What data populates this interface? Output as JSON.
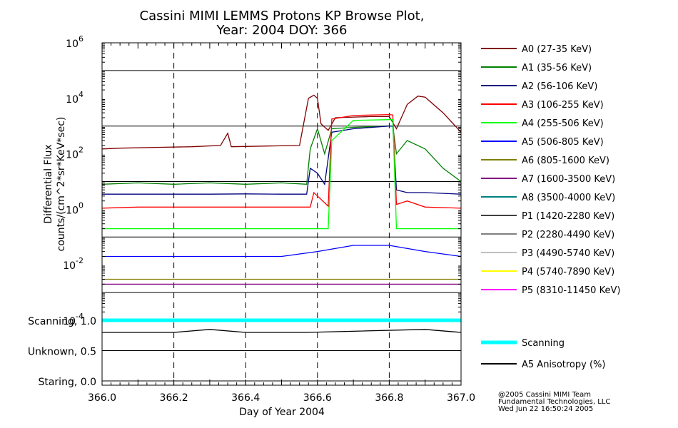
{
  "chart_data": {
    "type": "line",
    "title_line1": "Cassini MIMI LEMMS Protons KP Browse Plot,",
    "title_line2": "Year: 2004 DOY: 366",
    "xlabel": "Day of Year 2004",
    "ylabel_line1": "Differential Flux",
    "ylabel_line2": "counts/(cm^2*sr*KeV*sec)",
    "xlim": [
      366.0,
      367.0
    ],
    "x_ticks": [
      "366.0",
      "366.2",
      "366.4",
      "366.6",
      "366.8",
      "367.0"
    ],
    "y_scale": "log",
    "ylim": [
      0.0001,
      1000000
    ],
    "y_tick_base": "10",
    "y_tick_exponents": [
      "6",
      "4",
      "2",
      "0",
      "-2",
      "-4"
    ],
    "lower_panel_labels": [
      "Scanning, 1.0",
      "Unknown, 0.5",
      "Staring, 0.0"
    ],
    "series": [
      {
        "name": "A0 (27-35 KeV)",
        "color": "#800000",
        "points": [
          [
            366.0,
            150
          ],
          [
            366.05,
            160
          ],
          [
            366.15,
            170
          ],
          [
            366.25,
            180
          ],
          [
            366.33,
            200
          ],
          [
            366.35,
            550
          ],
          [
            366.36,
            180
          ],
          [
            366.45,
            190
          ],
          [
            366.55,
            200
          ],
          [
            366.575,
            10000
          ],
          [
            366.59,
            13000
          ],
          [
            366.6,
            10000
          ],
          [
            366.61,
            1200
          ],
          [
            366.63,
            700
          ],
          [
            366.65,
            2000
          ],
          [
            366.75,
            2200
          ],
          [
            366.8,
            2200
          ],
          [
            366.82,
            800
          ],
          [
            366.85,
            6000
          ],
          [
            366.88,
            12000
          ],
          [
            366.9,
            11000
          ],
          [
            366.95,
            3000
          ],
          [
            367.0,
            600
          ]
        ]
      },
      {
        "name": "A1 (35-56 KeV)",
        "color": "#008000",
        "points": [
          [
            366.0,
            8
          ],
          [
            366.1,
            9
          ],
          [
            366.2,
            8
          ],
          [
            366.3,
            9
          ],
          [
            366.4,
            8
          ],
          [
            366.5,
            9
          ],
          [
            366.57,
            8
          ],
          [
            366.58,
            150
          ],
          [
            366.6,
            800
          ],
          [
            366.62,
            100
          ],
          [
            366.64,
            800
          ],
          [
            366.7,
            900
          ],
          [
            366.8,
            1000
          ],
          [
            366.81,
            1000
          ],
          [
            366.82,
            100
          ],
          [
            366.85,
            300
          ],
          [
            366.9,
            150
          ],
          [
            366.95,
            30
          ],
          [
            367.0,
            10
          ]
        ]
      },
      {
        "name": "A2 (56-106 KeV)",
        "color": "#000080",
        "points": [
          [
            366.0,
            3.5
          ],
          [
            366.1,
            3.5
          ],
          [
            366.2,
            3.5
          ],
          [
            366.3,
            3.5
          ],
          [
            366.4,
            3.6
          ],
          [
            366.5,
            3.5
          ],
          [
            366.57,
            3.5
          ],
          [
            366.58,
            30
          ],
          [
            366.6,
            20
          ],
          [
            366.62,
            8
          ],
          [
            366.64,
            600
          ],
          [
            366.7,
            800
          ],
          [
            366.8,
            1000
          ],
          [
            366.81,
            1000
          ],
          [
            366.82,
            5
          ],
          [
            366.85,
            4
          ],
          [
            366.9,
            4
          ],
          [
            367.0,
            3.5
          ]
        ]
      },
      {
        "name": "A3 (106-255 KeV)",
        "color": "#ff0000",
        "points": [
          [
            366.0,
            1.1
          ],
          [
            366.1,
            1.2
          ],
          [
            366.2,
            1.2
          ],
          [
            366.3,
            1.2
          ],
          [
            366.4,
            1.2
          ],
          [
            366.5,
            1.2
          ],
          [
            366.58,
            1.2
          ],
          [
            366.59,
            4
          ],
          [
            366.6,
            3
          ],
          [
            366.63,
            1.3
          ],
          [
            366.64,
            1800
          ],
          [
            366.7,
            2400
          ],
          [
            366.8,
            2600
          ],
          [
            366.81,
            2500
          ],
          [
            366.82,
            1.5
          ],
          [
            366.85,
            2
          ],
          [
            366.9,
            1.2
          ],
          [
            367.0,
            1.1
          ]
        ]
      },
      {
        "name": "A4 (255-506 KeV)",
        "color": "#00ff00",
        "points": [
          [
            366.0,
            0.2
          ],
          [
            366.1,
            0.2
          ],
          [
            366.2,
            0.2
          ],
          [
            366.3,
            0.2
          ],
          [
            366.4,
            0.2
          ],
          [
            366.5,
            0.2
          ],
          [
            366.6,
            0.2
          ],
          [
            366.63,
            0.2
          ],
          [
            366.64,
            300
          ],
          [
            366.7,
            1600
          ],
          [
            366.8,
            1700
          ],
          [
            366.81,
            1700
          ],
          [
            366.82,
            0.2
          ],
          [
            366.9,
            0.2
          ],
          [
            367.0,
            0.2
          ]
        ]
      },
      {
        "name": "A5 (506-805 KeV)",
        "color": "#0000ff",
        "points": [
          [
            366.0,
            0.02
          ],
          [
            366.1,
            0.02
          ],
          [
            366.2,
            0.02
          ],
          [
            366.3,
            0.02
          ],
          [
            366.4,
            0.02
          ],
          [
            366.5,
            0.02
          ],
          [
            366.6,
            0.03
          ],
          [
            366.7,
            0.05
          ],
          [
            366.8,
            0.05
          ],
          [
            366.9,
            0.03
          ],
          [
            367.0,
            0.02
          ]
        ]
      },
      {
        "name": "A6 (805-1600 KeV)",
        "color": "#808000",
        "points": [
          [
            366.0,
            0.003
          ],
          [
            366.2,
            0.003
          ],
          [
            366.4,
            0.003
          ],
          [
            366.6,
            0.003
          ],
          [
            366.8,
            0.003
          ],
          [
            367.0,
            0.003
          ]
        ]
      },
      {
        "name": "A7 (1600-3500 KeV)",
        "color": "#800080",
        "points": [
          [
            366.0,
            0.002
          ],
          [
            366.2,
            0.002
          ],
          [
            366.4,
            0.002
          ],
          [
            366.6,
            0.002
          ],
          [
            366.8,
            0.002
          ],
          [
            367.0,
            0.002
          ]
        ]
      },
      {
        "name": "A8 (3500-4000 KeV)",
        "color": "#008080",
        "points": []
      },
      {
        "name": "P1 (1420-2280 KeV)",
        "color": "#404040",
        "points": []
      },
      {
        "name": "P2 (2280-4490 KeV)",
        "color": "#808080",
        "points": [
          [
            366.0,
            0.0001
          ],
          [
            366.5,
            0.0001
          ],
          [
            367.0,
            0.0001
          ]
        ]
      },
      {
        "name": "P3 (4490-5740 KeV)",
        "color": "#c0c0c0",
        "points": []
      },
      {
        "name": "P4 (5740-7890 KeV)",
        "color": "#ffff00",
        "points": [
          [
            366.0,
            0.0001
          ],
          [
            366.5,
            0.0001
          ],
          [
            367.0,
            0.0001
          ]
        ]
      },
      {
        "name": "P5 (8310-11450 KeV)",
        "color": "#ff00ff",
        "points": []
      }
    ],
    "lower_series": [
      {
        "name": "Scanning",
        "color": "#00ffff",
        "points": [
          [
            366.0,
            1.0
          ],
          [
            367.0,
            1.0
          ]
        ]
      },
      {
        "name": "A5 Anisotropy (%)",
        "color": "#000000",
        "points": [
          [
            366.0,
            0.8
          ],
          [
            366.1,
            0.8
          ],
          [
            366.2,
            0.8
          ],
          [
            366.3,
            0.85
          ],
          [
            366.4,
            0.8
          ],
          [
            366.57,
            0.8
          ],
          [
            366.9,
            0.85
          ],
          [
            367.0,
            0.8
          ]
        ]
      }
    ],
    "grid": true,
    "legend_position": "right"
  },
  "credits": [
    "@2005 Cassini MIMI Team",
    "Fundamental Technologies, LLC",
    "Wed Jun 22 16:50:24 2005"
  ]
}
